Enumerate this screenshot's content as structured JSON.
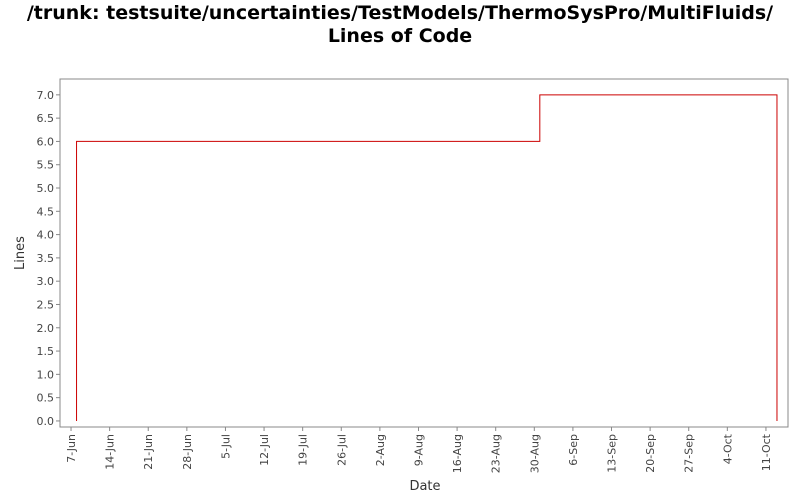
{
  "chart_data": {
    "type": "step",
    "title": "/trunk: testsuite/uncertainties/TestModels/ThermoSysPro/MultiFluids/ Lines of Code",
    "x_label": "Date",
    "y_label": "Lines",
    "x": [
      "8-Jun",
      "31-Aug",
      "13-Oct"
    ],
    "series": [
      {
        "name": "Lines",
        "color": "#cc0000",
        "values": [
          6,
          7,
          7
        ]
      }
    ],
    "xlim": [
      "5-Jun",
      "15-Oct"
    ],
    "xticks": [
      "7-Jun",
      "14-Jun",
      "21-Jun",
      "28-Jun",
      "5-Jul",
      "12-Jul",
      "19-Jul",
      "26-Jul",
      "2-Aug",
      "9-Aug",
      "16-Aug",
      "23-Aug",
      "30-Aug",
      "6-Sep",
      "13-Sep",
      "20-Sep",
      "27-Sep",
      "4-Oct",
      "11-Oct"
    ],
    "ylim": [
      -0.13,
      7.34
    ],
    "yticks": [
      {
        "value": 0,
        "label": "0.0"
      },
      {
        "value": 0.5,
        "label": "0.5"
      },
      {
        "value": 1,
        "label": "1.0"
      },
      {
        "value": 1.5,
        "label": "1.5"
      },
      {
        "value": 2,
        "label": "2.0"
      },
      {
        "value": 2.5,
        "label": "2.5"
      },
      {
        "value": 3,
        "label": "3.0"
      },
      {
        "value": 3.5,
        "label": "3.5"
      },
      {
        "value": 4,
        "label": "4.0"
      },
      {
        "value": 4.5,
        "label": "4.5"
      },
      {
        "value": 5,
        "label": "5.0"
      },
      {
        "value": 5.5,
        "label": "5.5"
      },
      {
        "value": 6,
        "label": "6.0"
      },
      {
        "value": 6.5,
        "label": "6.5"
      },
      {
        "value": 7,
        "label": "7.0"
      }
    ],
    "grid": false
  }
}
